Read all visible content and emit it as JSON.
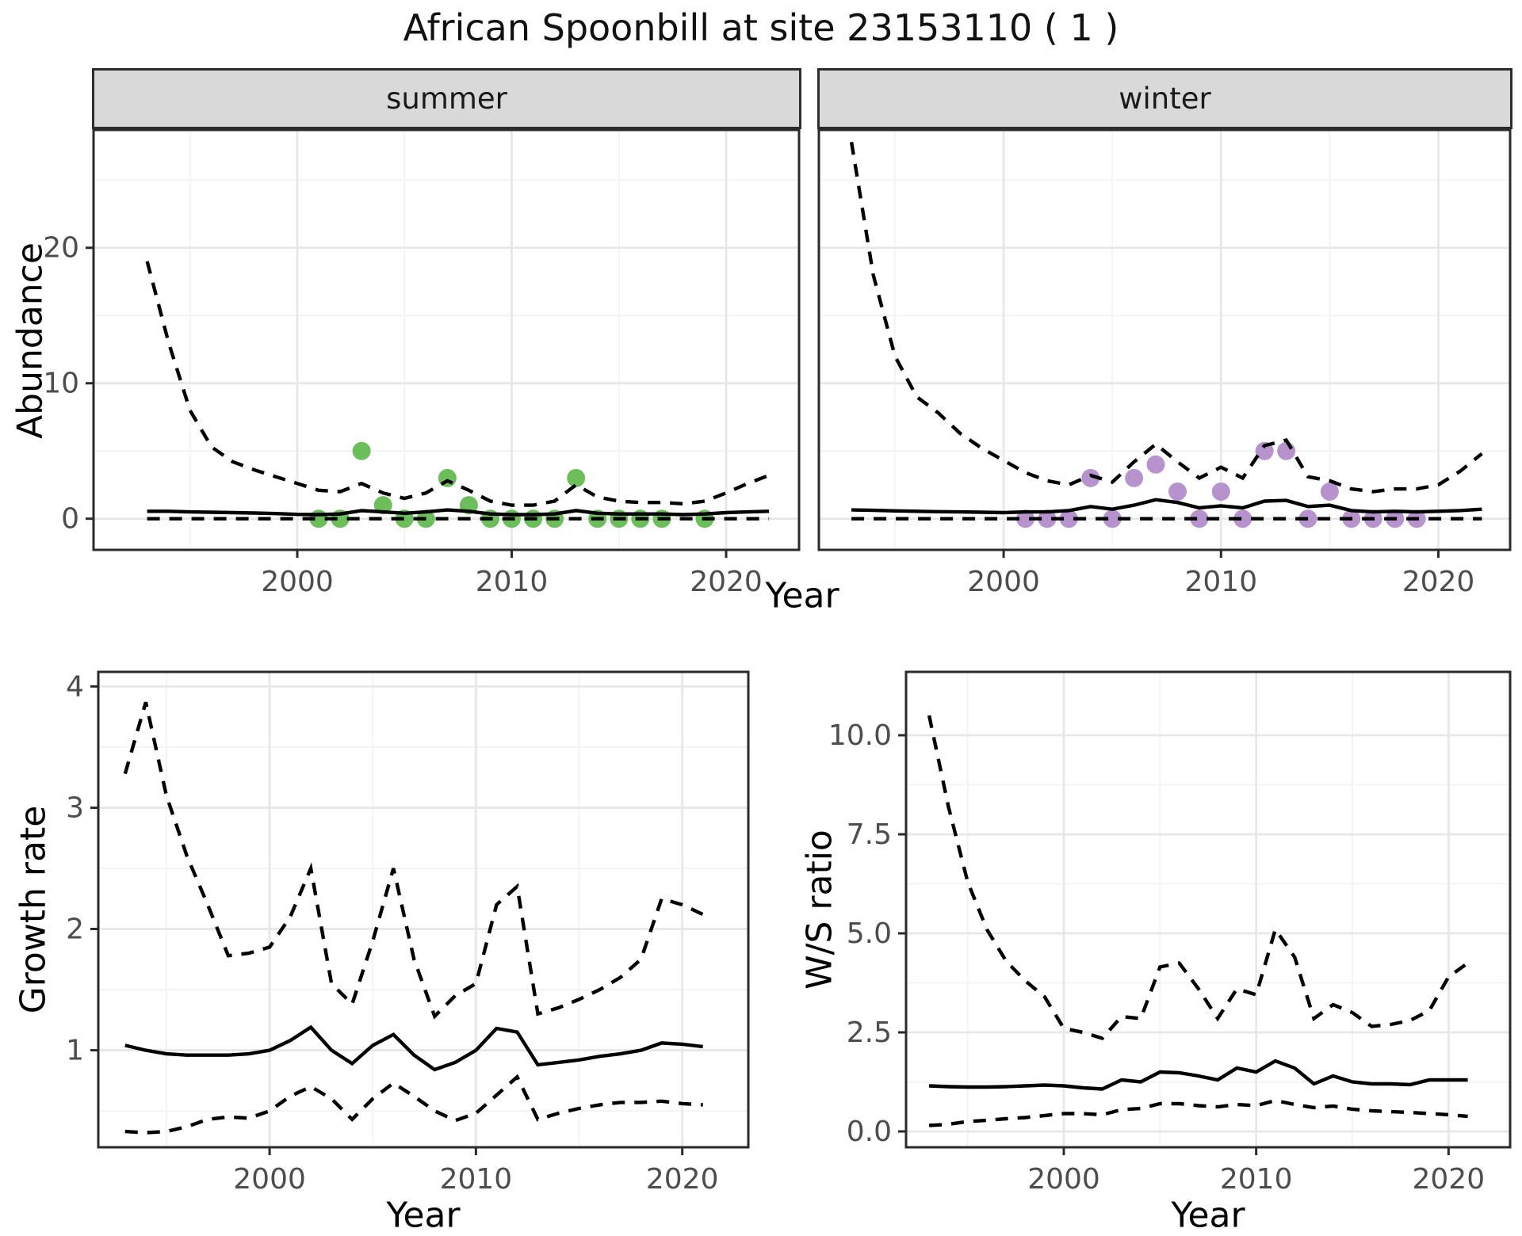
{
  "title": "African Spoonbill at site 23153110 ( 1 )",
  "axes": {
    "top_ylabel": "Abundance",
    "top_xlabel": "Year",
    "growth_ylabel": "Growth rate",
    "growth_xlabel": "Year",
    "ws_ylabel": "W/S ratio",
    "ws_xlabel": "Year"
  },
  "colors": {
    "summer_point": "#6CBE5B",
    "winter_point": "#B793CE",
    "line": "#000000",
    "panel_border": "#2B2B2B",
    "strip_bg": "#D9D9D9",
    "grid_major": "#E7E7E7",
    "grid_minor": "#F4F4F4",
    "tick_text": "#4D4D4D"
  },
  "chart_data": {
    "type": "line",
    "title": "African Spoonbill at site 23153110 ( 1 )",
    "legend_position": "none",
    "grid": "on",
    "panels": {
      "summer": {
        "strip": "summer",
        "xlabel": "Year",
        "ylabel": "Abundance",
        "show_yticks": true,
        "xlim": [
          1990.5,
          2023.4
        ],
        "ylim": [
          -2.3,
          28.7
        ],
        "xticks": {
          "values": [
            2000,
            2010,
            2020
          ],
          "labels": [
            "2000",
            "2010",
            "2020"
          ],
          "minor": [
            1995,
            2005,
            2015
          ]
        },
        "yticks": {
          "values": [
            0,
            10,
            20
          ],
          "labels": [
            "0",
            "10",
            "20"
          ],
          "minor": [
            5,
            15,
            25
          ]
        },
        "years": [
          1993,
          1994,
          1995,
          1996,
          1997,
          1998,
          1999,
          2000,
          2001,
          2002,
          2003,
          2004,
          2005,
          2006,
          2007,
          2008,
          2009,
          2010,
          2011,
          2012,
          2013,
          2014,
          2015,
          2016,
          2017,
          2018,
          2019,
          2020,
          2021,
          2022
        ],
        "series": [
          {
            "name": "upper-ci",
            "style": "dashed",
            "values": [
              19,
              13,
              8,
              5.3,
              4.2,
              3.6,
              3.1,
              2.6,
              2.1,
              2.0,
              2.6,
              1.9,
              1.5,
              1.9,
              2.8,
              2.1,
              1.3,
              1.0,
              1.0,
              1.3,
              2.5,
              1.6,
              1.3,
              1.2,
              1.2,
              1.1,
              1.3,
              1.9,
              2.6,
              3.2
            ]
          },
          {
            "name": "median",
            "style": "solid",
            "values": [
              0.55,
              0.55,
              0.5,
              0.48,
              0.45,
              0.42,
              0.38,
              0.32,
              0.3,
              0.35,
              0.6,
              0.5,
              0.4,
              0.5,
              0.65,
              0.55,
              0.35,
              0.3,
              0.3,
              0.35,
              0.6,
              0.4,
              0.35,
              0.35,
              0.35,
              0.3,
              0.35,
              0.45,
              0.5,
              0.55
            ]
          },
          {
            "name": "lower-ci",
            "style": "dashed",
            "values": [
              0,
              0,
              0,
              0,
              0,
              0,
              0,
              0,
              0,
              0,
              0,
              0,
              0,
              0,
              0,
              0,
              0,
              0,
              0,
              0,
              0,
              0,
              0,
              0,
              0,
              0,
              0,
              0,
              0,
              0
            ]
          }
        ],
        "points": {
          "color_key": "summer_point",
          "years": [
            2001,
            2002,
            2003,
            2004,
            2005,
            2006,
            2007,
            2008,
            2009,
            2010,
            2011,
            2012,
            2013,
            2014,
            2015,
            2016,
            2017,
            2019
          ],
          "values": [
            0,
            0,
            5,
            1,
            0,
            0,
            3,
            1,
            0,
            0,
            0,
            0,
            3,
            0,
            0,
            0,
            0,
            0
          ]
        }
      },
      "winter": {
        "strip": "winter",
        "xlabel": "Year",
        "ylabel": "Abundance",
        "show_yticks": false,
        "xlim": [
          1991.5,
          2023.3
        ],
        "ylim": [
          -2.3,
          28.7
        ],
        "xticks": {
          "values": [
            2000,
            2010,
            2020
          ],
          "labels": [
            "2000",
            "2010",
            "2020"
          ],
          "minor": [
            1995,
            2005,
            2015
          ]
        },
        "yticks": {
          "values": [
            0,
            10,
            20
          ],
          "labels": [
            "0",
            "10",
            "20"
          ],
          "minor": [
            5,
            15,
            25
          ]
        },
        "years": [
          1993,
          1994,
          1995,
          1996,
          1997,
          1998,
          1999,
          2000,
          2001,
          2002,
          2003,
          2004,
          2005,
          2006,
          2007,
          2008,
          2009,
          2010,
          2011,
          2012,
          2013,
          2014,
          2015,
          2016,
          2017,
          2018,
          2019,
          2020,
          2021,
          2022
        ],
        "series": [
          {
            "name": "upper-ci",
            "style": "dashed",
            "values": [
              27.8,
              18,
              12,
              9,
              7.8,
              6.3,
              5.2,
              4.3,
              3.4,
              2.8,
              2.5,
              3.2,
              2.7,
              4.2,
              5.5,
              4.2,
              3.0,
              3.8,
              3.0,
              5.4,
              5.8,
              3.1,
              2.8,
              2.2,
              2.0,
              2.2,
              2.2,
              2.5,
              3.5,
              4.8
            ]
          },
          {
            "name": "median",
            "style": "solid",
            "values": [
              0.65,
              0.62,
              0.58,
              0.55,
              0.52,
              0.5,
              0.48,
              0.45,
              0.5,
              0.5,
              0.6,
              0.9,
              0.7,
              1.0,
              1.4,
              1.2,
              0.8,
              0.95,
              0.8,
              1.3,
              1.35,
              0.9,
              1.0,
              0.6,
              0.5,
              0.55,
              0.5,
              0.55,
              0.6,
              0.7
            ]
          },
          {
            "name": "lower-ci",
            "style": "dashed",
            "values": [
              0,
              0,
              0,
              0,
              0,
              0,
              0,
              0,
              0,
              0,
              0,
              0,
              0,
              0,
              0,
              0,
              0,
              0,
              0,
              0,
              0,
              0,
              0,
              0,
              0,
              0,
              0,
              0,
              0,
              0
            ]
          }
        ],
        "points": {
          "color_key": "winter_point",
          "years": [
            2001,
            2002,
            2003,
            2004,
            2005,
            2006,
            2007,
            2008,
            2009,
            2010,
            2011,
            2012,
            2013,
            2014,
            2015,
            2016,
            2017,
            2018,
            2019
          ],
          "values": [
            0,
            0,
            0,
            3,
            0,
            3,
            4,
            2,
            0,
            2,
            0,
            5,
            5,
            0,
            2,
            0,
            0,
            0,
            0
          ]
        }
      },
      "growth": {
        "strip": "",
        "xlabel": "Year",
        "ylabel": "Growth rate",
        "show_yticks": true,
        "xlim": [
          1991.7,
          2023.2
        ],
        "ylim": [
          0.2,
          4.12
        ],
        "xticks": {
          "values": [
            2000,
            2010,
            2020
          ],
          "labels": [
            "2000",
            "2010",
            "2020"
          ],
          "minor": [
            1995,
            2005,
            2015
          ]
        },
        "yticks": {
          "values": [
            1,
            2,
            3,
            4
          ],
          "labels": [
            "1",
            "2",
            "3",
            "4"
          ],
          "minor": [
            0.5,
            1.5,
            2.5,
            3.5
          ]
        },
        "years": [
          1993,
          1994,
          1995,
          1996,
          1997,
          1998,
          1999,
          2000,
          2001,
          2002,
          2003,
          2004,
          2005,
          2006,
          2007,
          2008,
          2009,
          2010,
          2011,
          2012,
          2013,
          2014,
          2015,
          2016,
          2017,
          2018,
          2019,
          2020,
          2021
        ],
        "series": [
          {
            "name": "upper-ci",
            "style": "dashed",
            "values": [
              3.28,
              3.87,
              3.1,
              2.6,
              2.2,
              1.78,
              1.8,
              1.85,
              2.1,
              2.5,
              1.55,
              1.38,
              1.9,
              2.5,
              1.75,
              1.28,
              1.45,
              1.55,
              2.2,
              2.35,
              1.3,
              1.35,
              1.42,
              1.5,
              1.6,
              1.75,
              2.25,
              2.2,
              2.12
            ]
          },
          {
            "name": "median",
            "style": "solid",
            "values": [
              1.04,
              1.0,
              0.97,
              0.96,
              0.96,
              0.96,
              0.97,
              1.0,
              1.08,
              1.19,
              1.0,
              0.89,
              1.04,
              1.13,
              0.96,
              0.84,
              0.9,
              1.0,
              1.18,
              1.15,
              0.88,
              0.9,
              0.92,
              0.95,
              0.97,
              1.0,
              1.06,
              1.05,
              1.03
            ]
          },
          {
            "name": "lower-ci",
            "style": "dashed",
            "values": [
              0.33,
              0.32,
              0.33,
              0.37,
              0.43,
              0.45,
              0.44,
              0.5,
              0.62,
              0.7,
              0.6,
              0.43,
              0.6,
              0.73,
              0.62,
              0.5,
              0.42,
              0.48,
              0.63,
              0.78,
              0.43,
              0.48,
              0.52,
              0.55,
              0.57,
              0.57,
              0.58,
              0.56,
              0.55
            ]
          }
        ],
        "points": {
          "color_key": "summer_point",
          "years": [],
          "values": []
        }
      },
      "ws": {
        "strip": "",
        "xlabel": "Year",
        "ylabel": "W/S ratio",
        "show_yticks": true,
        "xlim": [
          1991.8,
          2023.2
        ],
        "ylim": [
          -0.4,
          11.6
        ],
        "xticks": {
          "values": [
            2000,
            2010,
            2020
          ],
          "labels": [
            "2000",
            "2010",
            "2020"
          ],
          "minor": [
            1995,
            2005,
            2015
          ]
        },
        "yticks": {
          "values": [
            0,
            2.5,
            5,
            7.5,
            10
          ],
          "labels": [
            "0.0",
            "2.5",
            "5.0",
            "7.5",
            "10.0"
          ],
          "minor": [
            1.25,
            3.75,
            6.25,
            8.75
          ]
        },
        "years": [
          1993,
          1994,
          1995,
          1996,
          1997,
          1998,
          1999,
          2000,
          2001,
          2002,
          2003,
          2004,
          2005,
          2006,
          2007,
          2008,
          2009,
          2010,
          2011,
          2012,
          2013,
          2014,
          2015,
          2016,
          2017,
          2018,
          2019,
          2020,
          2021
        ],
        "series": [
          {
            "name": "upper-ci",
            "style": "dashed",
            "values": [
              10.5,
              8.2,
              6.3,
              5.1,
              4.3,
              3.8,
              3.4,
              2.6,
              2.5,
              2.35,
              2.9,
              2.85,
              4.15,
              4.25,
              3.6,
              2.85,
              3.6,
              3.45,
              5.1,
              4.4,
              2.85,
              3.2,
              3.0,
              2.65,
              2.7,
              2.8,
              3.05,
              3.9,
              4.25
            ]
          },
          {
            "name": "median",
            "style": "solid",
            "values": [
              1.15,
              1.13,
              1.12,
              1.12,
              1.13,
              1.15,
              1.17,
              1.15,
              1.1,
              1.07,
              1.3,
              1.25,
              1.5,
              1.48,
              1.4,
              1.3,
              1.6,
              1.5,
              1.78,
              1.6,
              1.2,
              1.4,
              1.25,
              1.2,
              1.2,
              1.18,
              1.3,
              1.3,
              1.3
            ]
          },
          {
            "name": "lower-ci",
            "style": "dashed",
            "values": [
              0.15,
              0.18,
              0.25,
              0.28,
              0.32,
              0.35,
              0.4,
              0.45,
              0.45,
              0.42,
              0.55,
              0.58,
              0.7,
              0.7,
              0.65,
              0.62,
              0.68,
              0.65,
              0.78,
              0.68,
              0.6,
              0.64,
              0.56,
              0.52,
              0.5,
              0.48,
              0.45,
              0.42,
              0.38
            ]
          }
        ],
        "points": {
          "color_key": "winter_point",
          "years": [],
          "values": []
        }
      }
    }
  }
}
